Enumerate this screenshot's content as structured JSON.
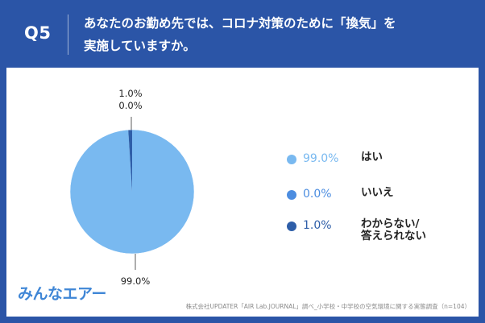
{
  "header": {
    "question_number": "Q5",
    "question_line1": "あなたのお勤め先では、コロナ対策のために「換気」を",
    "question_line2": "実施していますか。"
  },
  "chart_data": {
    "type": "pie",
    "slices": [
      {
        "label": "はい",
        "value": 99.0,
        "display": "99.0%",
        "color": "#79b9f0",
        "pct_color": "#79b9f0"
      },
      {
        "label": "いいえ",
        "value": 0.0,
        "display": "0.0%",
        "color": "#4c8de0",
        "pct_color": "#4c8de0"
      },
      {
        "label": "わからない/\n答えられない",
        "value": 1.0,
        "display": "1.0%",
        "color": "#2e5ea8",
        "pct_color": "#2e5ea8"
      }
    ],
    "data_labels": [
      "99.0%",
      "0.0%",
      "1.0%"
    ],
    "legend_position": "right"
  },
  "legend": {
    "items": [
      {
        "pct": "99.0%",
        "label": "はい",
        "color": "#79b9f0"
      },
      {
        "pct": "0.0%",
        "label": "いいえ",
        "color": "#4c8de0"
      },
      {
        "pct": "1.0%",
        "label": "わからない/\n答えられない",
        "color": "#2e5ea8"
      }
    ]
  },
  "logo": {
    "text": "みんなエアー",
    "color": "#3f86d6"
  },
  "footer": {
    "source": "株式会社UPDATER「AIR Lab.JOURNAL」調べ_小学校・中学校の空気環境に関する実態調査（n=104）"
  }
}
